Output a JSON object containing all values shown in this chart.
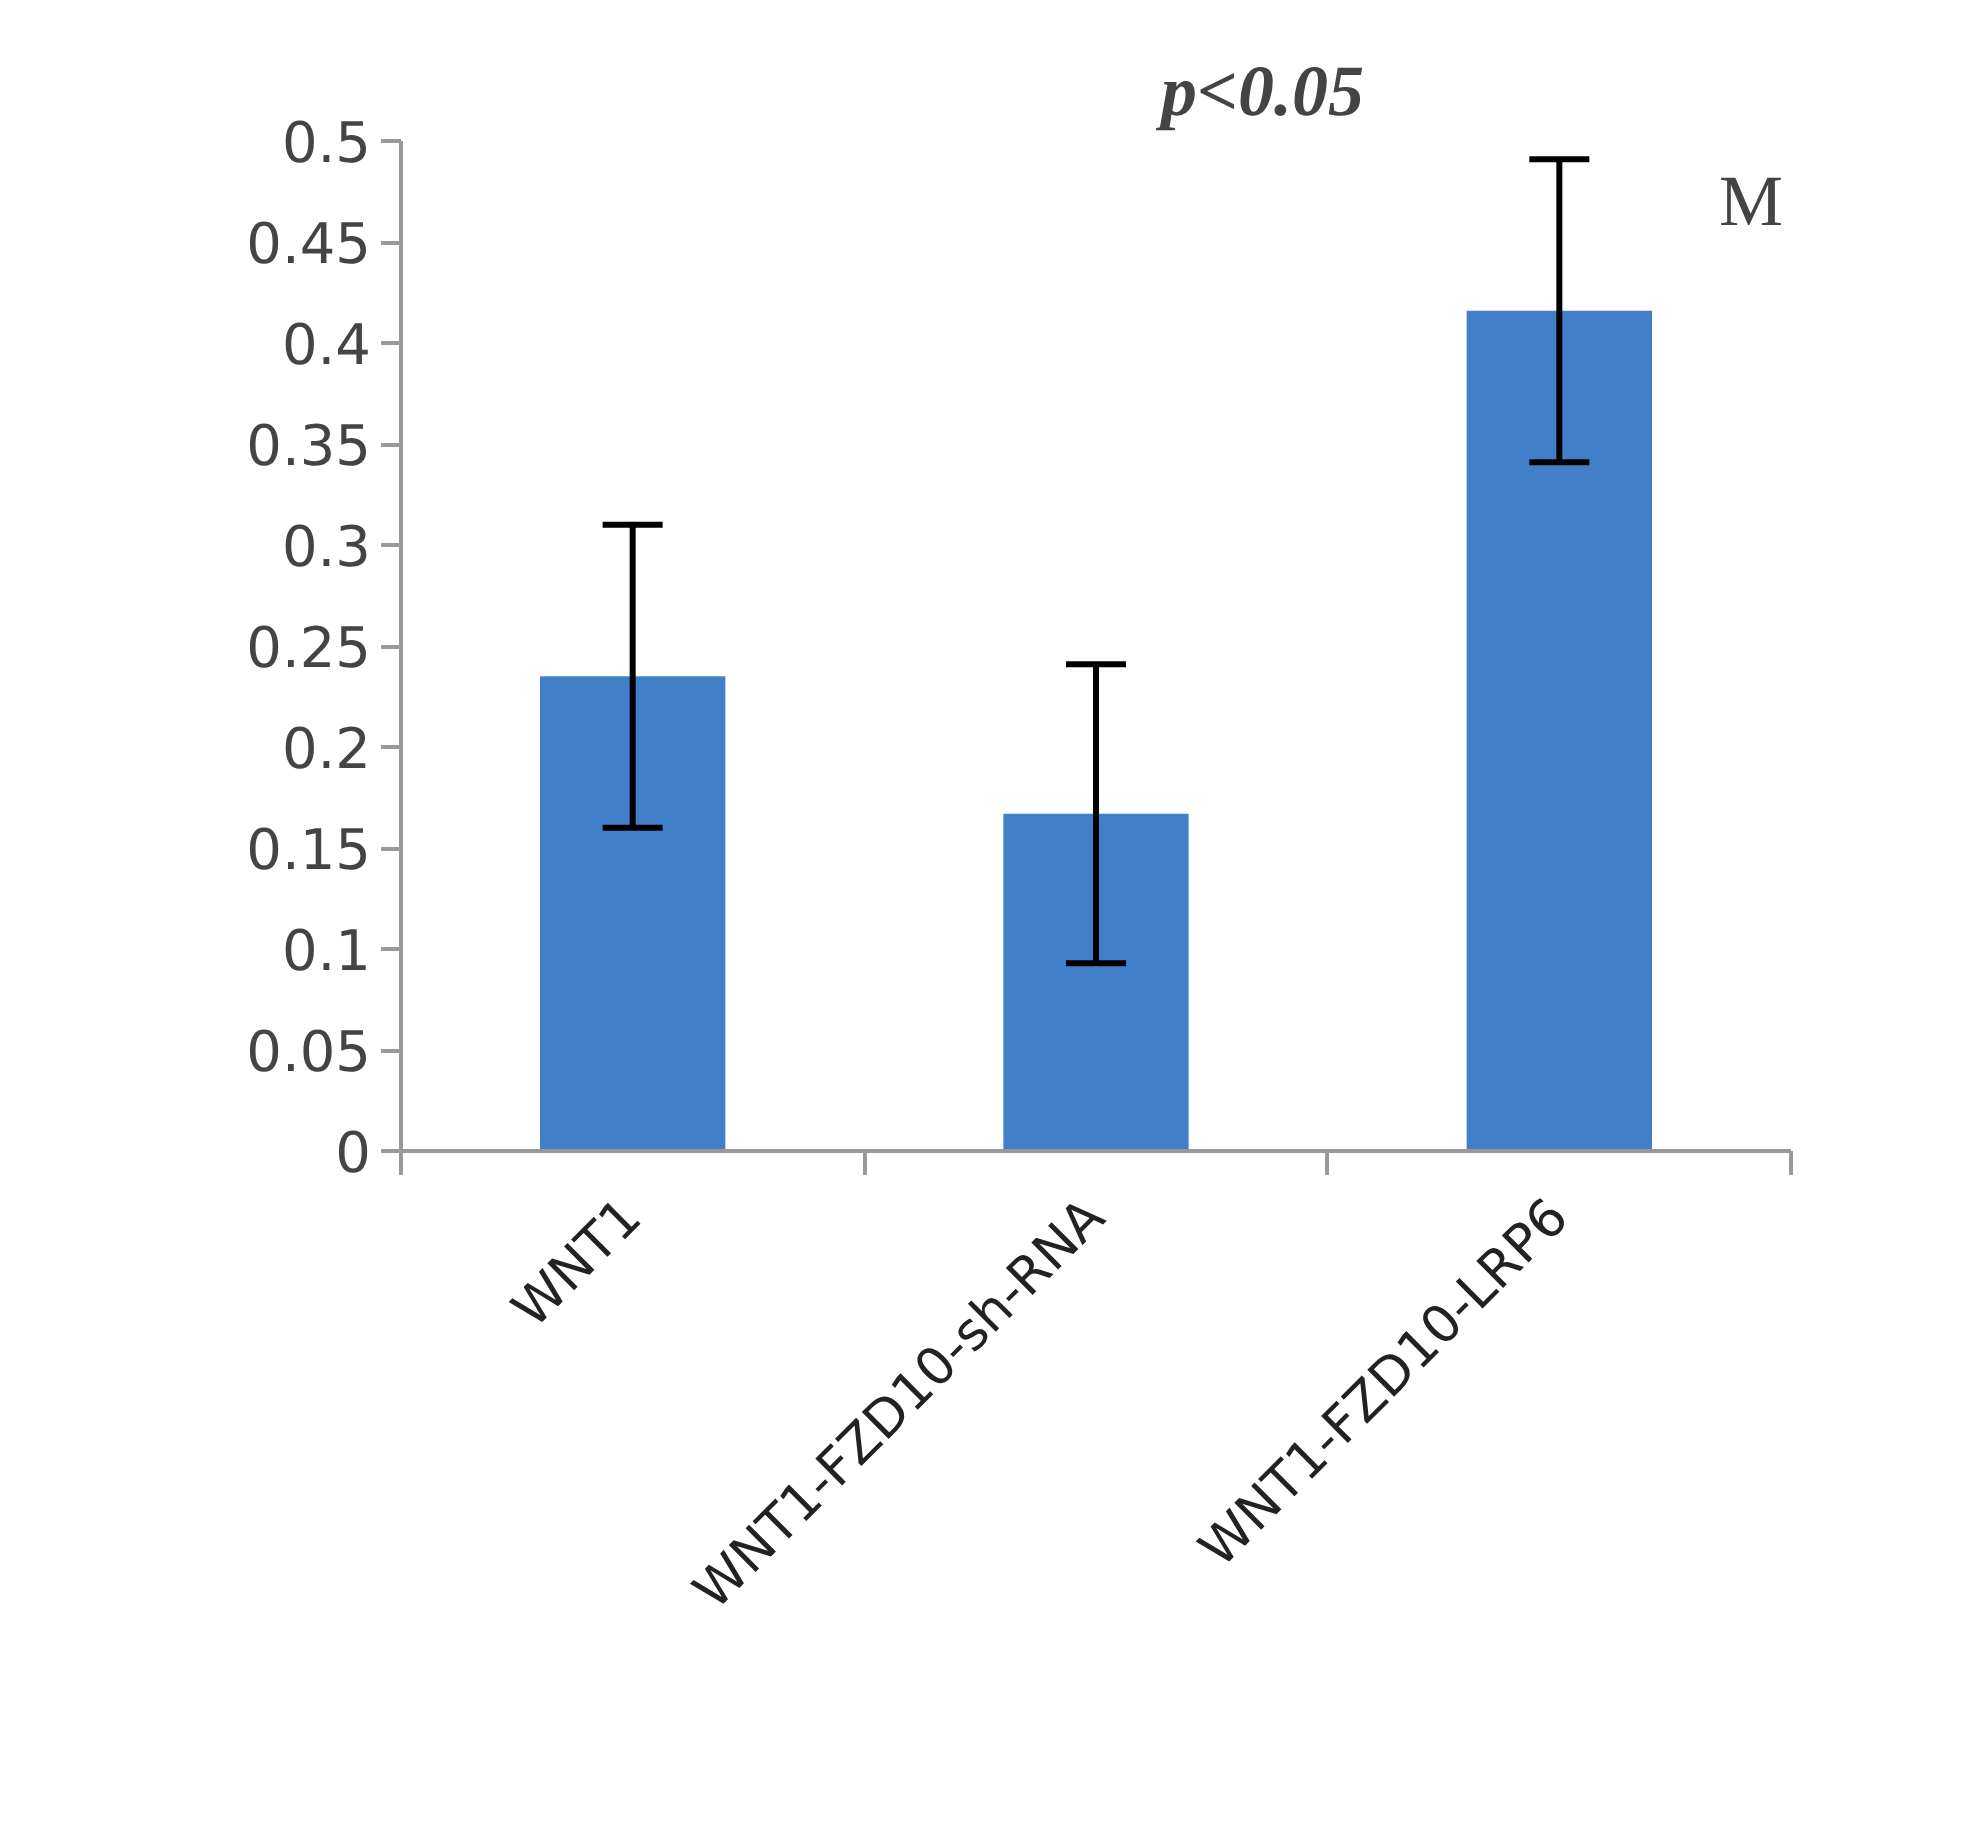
{
  "chart_data": {
    "type": "bar",
    "categories": [
      "WNT1",
      "WNT1-FZD10-sh-RNA",
      "WNT1-FZD10-LRP6"
    ],
    "values": [
      0.235,
      0.167,
      0.416
    ],
    "errors": [
      0.075,
      0.074,
      0.075
    ],
    "color": "#4180c8",
    "ylim": [
      0,
      0.5
    ],
    "yticks": [
      0,
      0.05,
      0.1,
      0.15,
      0.2,
      0.25,
      0.3,
      0.35,
      0.4,
      0.45,
      0.5
    ],
    "grid": false,
    "annotations": [
      "p<0.05",
      "M"
    ]
  }
}
